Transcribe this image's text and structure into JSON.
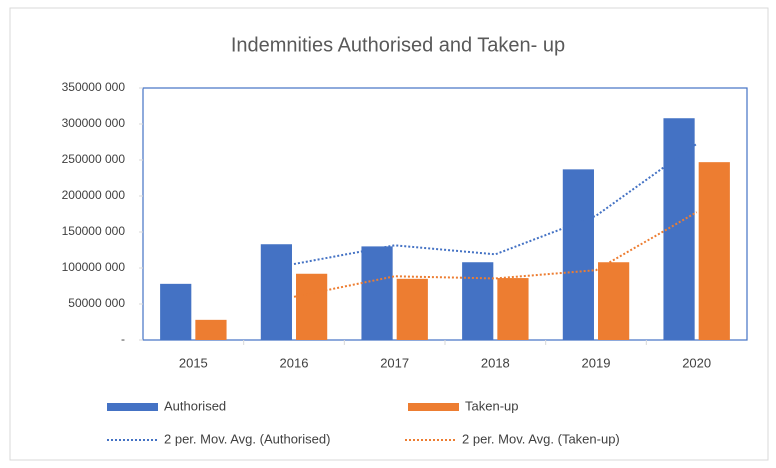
{
  "chart_data": {
    "type": "bar",
    "title": "Indemnities Authorised and Taken- up",
    "categories": [
      "2015",
      "2016",
      "2017",
      "2018",
      "2019",
      "2020"
    ],
    "series": [
      {
        "name": "Authorised",
        "color": "#4472c4",
        "values": [
          78000000,
          133000000,
          130000000,
          108000000,
          237000000,
          308000000
        ]
      },
      {
        "name": "Taken-up",
        "color": "#ed7d31",
        "values": [
          28000000,
          92000000,
          85000000,
          86000000,
          108000000,
          247000000
        ]
      },
      {
        "name": "2 per. Mov. Avg. (Authorised)",
        "color": "#4472c4",
        "kind": "dotted-line",
        "values": [
          null,
          105500000,
          131500000,
          119000000,
          172500000,
          272500000
        ]
      },
      {
        "name": "2 per. Mov. Avg. (Taken-up)",
        "color": "#ed7d31",
        "kind": "dotted-line",
        "values": [
          null,
          60000000,
          88500000,
          85500000,
          97000000,
          177500000
        ]
      }
    ],
    "ylim": [
      0,
      350000000
    ],
    "yticks": [
      {
        "value": 0,
        "label": "-"
      },
      {
        "value": 50000000,
        "label": "50000 000"
      },
      {
        "value": 100000000,
        "label": "100000 000"
      },
      {
        "value": 150000000,
        "label": "150000 000"
      },
      {
        "value": 200000000,
        "label": "200000 000"
      },
      {
        "value": 250000000,
        "label": "250000 000"
      },
      {
        "value": 300000000,
        "label": "300000 000"
      },
      {
        "value": 350000000,
        "label": "350000 000"
      }
    ],
    "grid": false
  }
}
